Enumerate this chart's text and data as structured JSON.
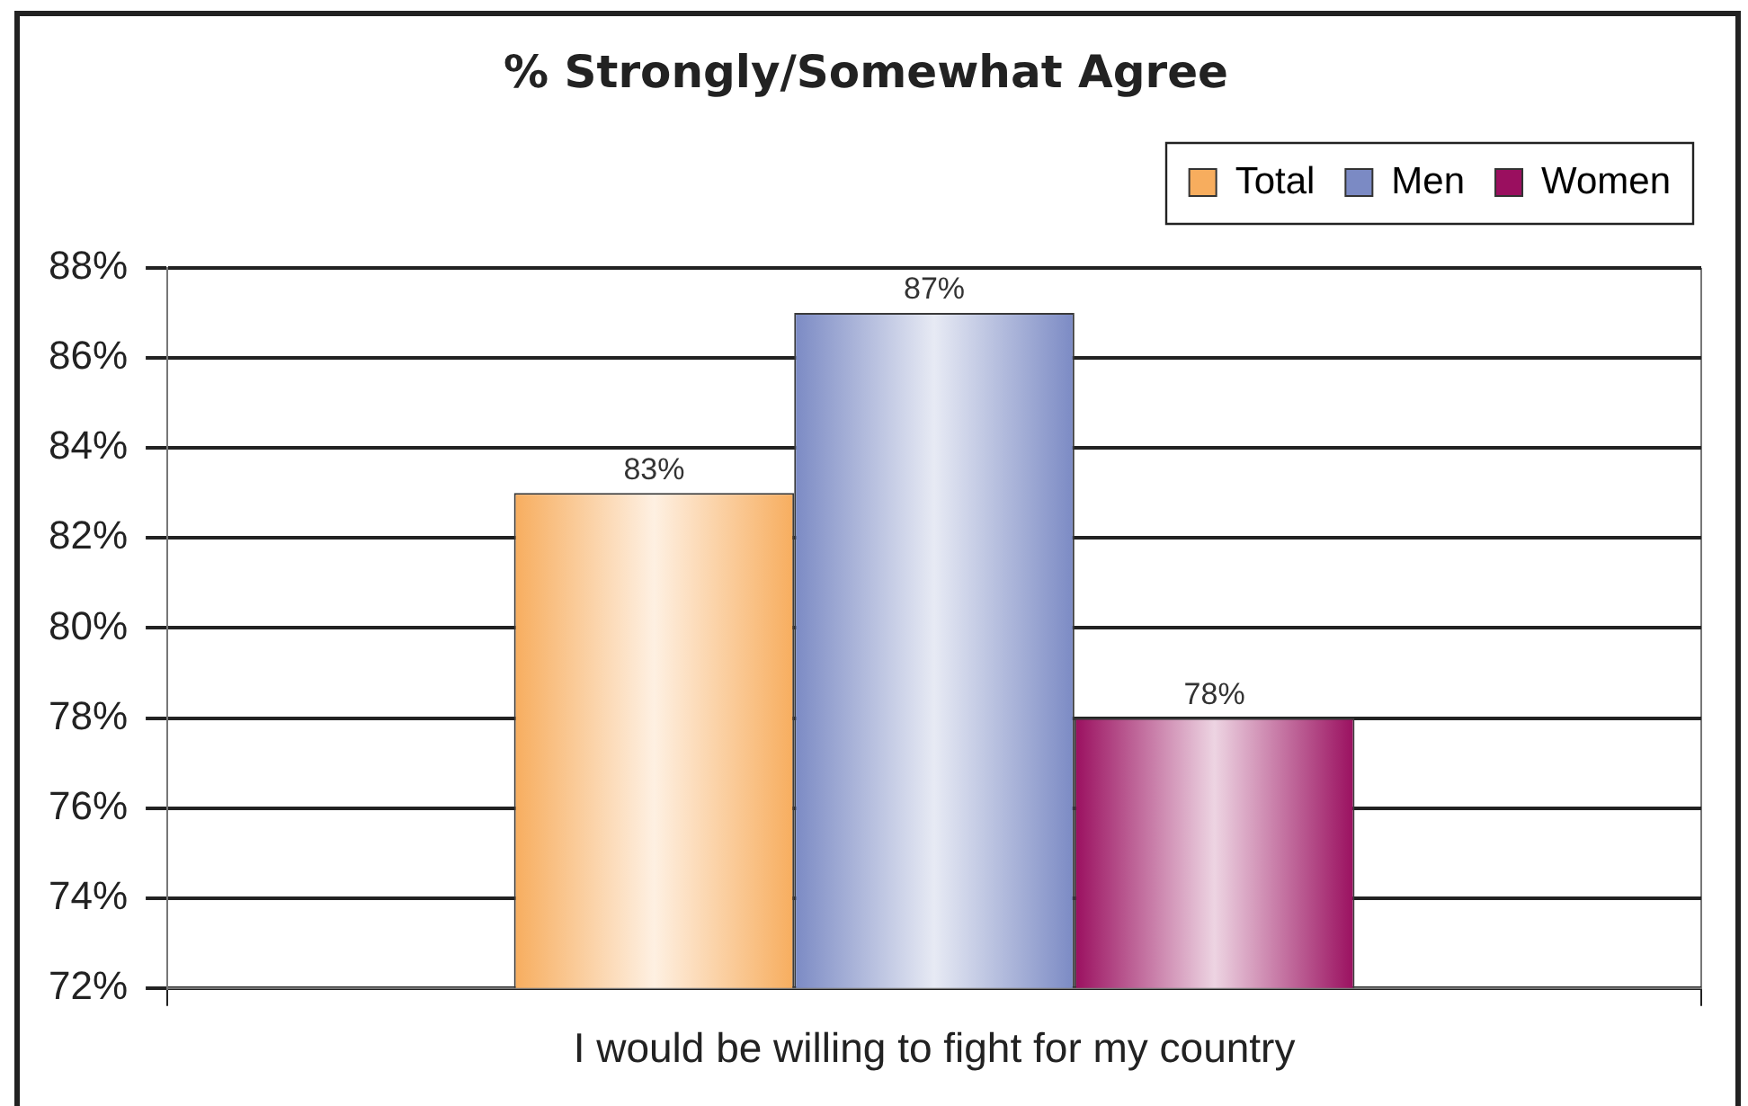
{
  "chart_data": {
    "type": "bar",
    "title": "% Strongly/Somewhat Agree",
    "categories": [
      "I would be willing to fight for my country"
    ],
    "series": [
      {
        "name": "Total",
        "color": "#f7ad5e",
        "values": [
          83
        ],
        "value_labels": [
          "83%"
        ]
      },
      {
        "name": "Men",
        "color": "#7b8ac4",
        "values": [
          87
        ],
        "value_labels": [
          "87%"
        ]
      },
      {
        "name": "Women",
        "color": "#9a0f5f",
        "values": [
          78
        ],
        "value_labels": [
          "78%"
        ]
      }
    ],
    "ylim": [
      72,
      88
    ],
    "yticks": [
      {
        "value": 72,
        "label": "72%"
      },
      {
        "value": 74,
        "label": "74%"
      },
      {
        "value": 76,
        "label": "76%"
      },
      {
        "value": 78,
        "label": "78%"
      },
      {
        "value": 80,
        "label": "80%"
      },
      {
        "value": 82,
        "label": "82%"
      },
      {
        "value": 84,
        "label": "84%"
      },
      {
        "value": 86,
        "label": "86%"
      },
      {
        "value": 88,
        "label": "88%"
      }
    ],
    "grid": "y",
    "legend": "top right"
  }
}
